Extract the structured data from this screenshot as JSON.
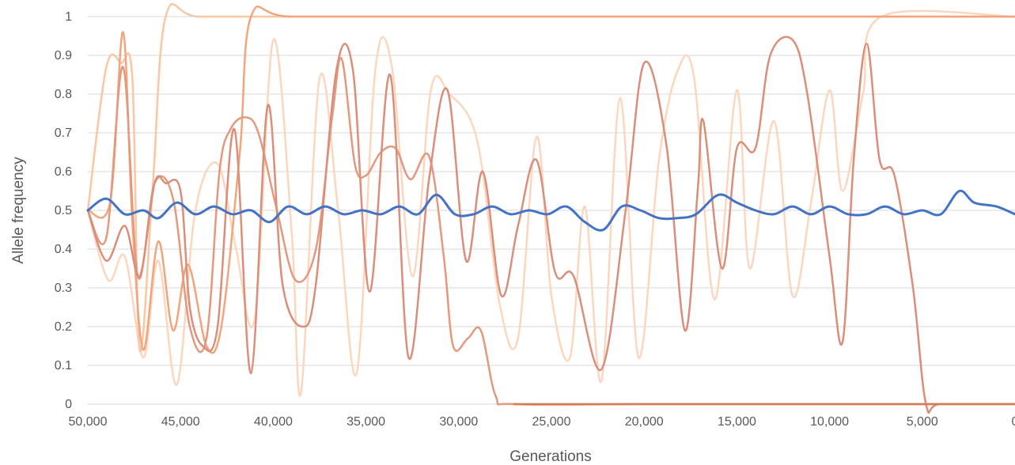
{
  "chart_data": {
    "type": "line",
    "title": "",
    "xlabel": "Generations",
    "ylabel": "Allele frequency",
    "xlim": [
      50000,
      0
    ],
    "x_reversed": true,
    "ylim": [
      0,
      1
    ],
    "grid": true,
    "legend": "none",
    "x_ticks": [
      50000,
      45000,
      40000,
      35000,
      30000,
      25000,
      20000,
      15000,
      10000,
      5000,
      0
    ],
    "x_tick_labels": [
      "50,000",
      "45,000",
      "40,000",
      "35,000",
      "30,000",
      "25,000",
      "20,000",
      "15,000",
      "10,000",
      "5,000",
      "0"
    ],
    "y_ticks": [
      0,
      0.1,
      0.2,
      0.3,
      0.4,
      0.5,
      0.6,
      0.7,
      0.8,
      0.9,
      1
    ],
    "y_tick_labels": [
      "0",
      "0.1",
      "0.2",
      "0.3",
      "0.4",
      "0.5",
      "0.6",
      "0.7",
      "0.8",
      "0.9",
      "1"
    ],
    "series": [
      {
        "color": "#fbd7c0",
        "width": 2.5,
        "points": [
          [
            50000,
            0.5
          ],
          [
            48900,
            0.32
          ],
          [
            48000,
            0.38
          ],
          [
            47000,
            0.12
          ],
          [
            46200,
            0.37
          ],
          [
            45200,
            0.05
          ],
          [
            44200,
            0.5
          ],
          [
            43000,
            0.62
          ],
          [
            42000,
            0.4
          ],
          [
            41000,
            0.22
          ],
          [
            40000,
            0.94
          ],
          [
            39000,
            0.44
          ],
          [
            38500,
            0.03
          ],
          [
            37500,
            0.84
          ],
          [
            36500,
            0.5
          ],
          [
            35500,
            0.08
          ],
          [
            34500,
            0.86
          ],
          [
            33600,
            0.87
          ],
          [
            32500,
            0.33
          ],
          [
            31500,
            0.81
          ],
          [
            30500,
            0.8
          ],
          [
            29000,
            0.68
          ],
          [
            27800,
            0.26
          ],
          [
            26800,
            0.17
          ],
          [
            25800,
            0.69
          ],
          [
            25000,
            0.28
          ],
          [
            24000,
            0.12
          ],
          [
            23200,
            0.51
          ],
          [
            22300,
            0.06
          ],
          [
            21300,
            0.79
          ],
          [
            20300,
            0.12
          ],
          [
            19200,
            0.63
          ],
          [
            18200,
            0.86
          ],
          [
            17300,
            0.84
          ],
          [
            16200,
            0.27
          ],
          [
            15000,
            0.81
          ],
          [
            14300,
            0.35
          ],
          [
            13000,
            0.73
          ],
          [
            12000,
            0.28
          ],
          [
            11000,
            0.52
          ],
          [
            10000,
            0.81
          ],
          [
            9300,
            0.55
          ],
          [
            8200,
            0.8
          ],
          [
            7200,
            1.0
          ],
          [
            0,
            1.0
          ]
        ]
      },
      {
        "color": "#f9c7a4",
        "width": 2.5,
        "points": [
          [
            50000,
            0.5
          ],
          [
            49000,
            0.87
          ],
          [
            48200,
            0.88
          ],
          [
            47600,
            0.84
          ],
          [
            47200,
            0.14
          ],
          [
            46500,
            0.56
          ],
          [
            45800,
            1.0
          ],
          [
            44000,
            1.0
          ],
          [
            38000,
            1.0
          ],
          [
            25000,
            1.0
          ],
          [
            0,
            1.0
          ]
        ]
      },
      {
        "color": "#f2a57d",
        "width": 2.5,
        "points": [
          [
            50000,
            0.5
          ],
          [
            48800,
            0.52
          ],
          [
            48100,
            0.96
          ],
          [
            47600,
            0.47
          ],
          [
            47000,
            0.14
          ],
          [
            46200,
            0.42
          ],
          [
            45400,
            0.19
          ],
          [
            44600,
            0.36
          ],
          [
            43600,
            0.15
          ],
          [
            42800,
            0.2
          ],
          [
            41800,
            0.65
          ],
          [
            41200,
            1.0
          ],
          [
            39000,
            1.0
          ],
          [
            30000,
            1.0
          ],
          [
            15000,
            1.0
          ],
          [
            0,
            1.0
          ]
        ]
      },
      {
        "color": "#e4997e",
        "width": 2.5,
        "points": [
          [
            50000,
            0.5
          ],
          [
            49000,
            0.43
          ],
          [
            48100,
            0.87
          ],
          [
            47300,
            0.33
          ],
          [
            46400,
            0.57
          ],
          [
            45400,
            0.53
          ],
          [
            44500,
            0.2
          ],
          [
            43600,
            0.17
          ],
          [
            42900,
            0.6
          ],
          [
            42300,
            0.71
          ],
          [
            41500,
            0.74
          ],
          [
            40800,
            0.7
          ],
          [
            39800,
            0.5
          ],
          [
            38800,
            0.32
          ],
          [
            37700,
            0.4
          ],
          [
            36800,
            0.75
          ],
          [
            36300,
            0.89
          ],
          [
            35600,
            0.62
          ],
          [
            35000,
            0.59
          ],
          [
            34200,
            0.65
          ],
          [
            33400,
            0.66
          ],
          [
            32600,
            0.58
          ],
          [
            31600,
            0.64
          ],
          [
            30800,
            0.38
          ],
          [
            30300,
            0.15
          ],
          [
            29500,
            0.17
          ],
          [
            28800,
            0.19
          ],
          [
            28000,
            0.02
          ],
          [
            27000,
            0.0
          ],
          [
            20000,
            0.0
          ],
          [
            10000,
            0.0
          ],
          [
            0,
            0.0
          ]
        ]
      },
      {
        "color": "#d98f7a",
        "width": 2.5,
        "points": [
          [
            50000,
            0.5
          ],
          [
            49000,
            0.37
          ],
          [
            48000,
            0.46
          ],
          [
            47200,
            0.33
          ],
          [
            46400,
            0.57
          ],
          [
            45800,
            0.57
          ],
          [
            45000,
            0.55
          ],
          [
            44500,
            0.25
          ],
          [
            43800,
            0.15
          ],
          [
            43000,
            0.2
          ],
          [
            42100,
            0.71
          ],
          [
            41200,
            0.08
          ],
          [
            40300,
            0.77
          ],
          [
            39500,
            0.31
          ],
          [
            38400,
            0.2
          ],
          [
            37700,
            0.31
          ],
          [
            36600,
            0.86
          ],
          [
            35700,
            0.86
          ],
          [
            34800,
            0.29
          ],
          [
            33700,
            0.85
          ],
          [
            32700,
            0.12
          ],
          [
            31600,
            0.58
          ],
          [
            30600,
            0.81
          ],
          [
            29600,
            0.37
          ],
          [
            28700,
            0.6
          ],
          [
            27700,
            0.28
          ],
          [
            26800,
            0.46
          ],
          [
            25800,
            0.63
          ],
          [
            24800,
            0.34
          ],
          [
            23800,
            0.33
          ],
          [
            22300,
            0.09
          ],
          [
            21000,
            0.5
          ],
          [
            20000,
            0.88
          ],
          [
            18800,
            0.67
          ],
          [
            17800,
            0.19
          ],
          [
            17100,
            0.56
          ],
          [
            16800,
            0.73
          ],
          [
            15800,
            0.35
          ],
          [
            15000,
            0.66
          ],
          [
            14000,
            0.66
          ],
          [
            13200,
            0.9
          ],
          [
            12000,
            0.94
          ],
          [
            11200,
            0.8
          ],
          [
            10000,
            0.38
          ],
          [
            9300,
            0.16
          ],
          [
            8700,
            0.63
          ],
          [
            8000,
            0.93
          ],
          [
            7300,
            0.63
          ],
          [
            6500,
            0.59
          ],
          [
            5500,
            0.3
          ],
          [
            4800,
            0.0
          ],
          [
            4000,
            0.0
          ],
          [
            0,
            0.0
          ]
        ]
      },
      {
        "color": "#d67a52",
        "width": 2.5,
        "points": [
          [
            27000,
            0.0
          ],
          [
            20000,
            0.0
          ],
          [
            10000,
            0.0
          ],
          [
            5000,
            0.0
          ],
          [
            0,
            0.0
          ]
        ]
      },
      {
        "color": "#4472c4",
        "width": 3,
        "points": [
          [
            50000,
            0.5
          ],
          [
            49000,
            0.53
          ],
          [
            48000,
            0.49
          ],
          [
            47000,
            0.5
          ],
          [
            46200,
            0.48
          ],
          [
            45200,
            0.52
          ],
          [
            44200,
            0.49
          ],
          [
            43200,
            0.51
          ],
          [
            42200,
            0.49
          ],
          [
            41200,
            0.5
          ],
          [
            40200,
            0.47
          ],
          [
            39200,
            0.51
          ],
          [
            38200,
            0.49
          ],
          [
            37200,
            0.51
          ],
          [
            36200,
            0.49
          ],
          [
            35200,
            0.5
          ],
          [
            34200,
            0.49
          ],
          [
            33200,
            0.51
          ],
          [
            32200,
            0.49
          ],
          [
            31200,
            0.54
          ],
          [
            30200,
            0.49
          ],
          [
            29200,
            0.49
          ],
          [
            28200,
            0.51
          ],
          [
            27200,
            0.49
          ],
          [
            26200,
            0.5
          ],
          [
            25200,
            0.49
          ],
          [
            24200,
            0.51
          ],
          [
            23200,
            0.47
          ],
          [
            22200,
            0.45
          ],
          [
            21200,
            0.51
          ],
          [
            20200,
            0.5
          ],
          [
            19200,
            0.48
          ],
          [
            18200,
            0.48
          ],
          [
            17200,
            0.49
          ],
          [
            16000,
            0.54
          ],
          [
            15000,
            0.52
          ],
          [
            14000,
            0.5
          ],
          [
            13000,
            0.49
          ],
          [
            12000,
            0.51
          ],
          [
            11000,
            0.49
          ],
          [
            10000,
            0.51
          ],
          [
            9000,
            0.49
          ],
          [
            8000,
            0.49
          ],
          [
            7000,
            0.51
          ],
          [
            6000,
            0.49
          ],
          [
            5000,
            0.5
          ],
          [
            4000,
            0.49
          ],
          [
            3000,
            0.55
          ],
          [
            2200,
            0.52
          ],
          [
            1000,
            0.51
          ],
          [
            0,
            0.49
          ]
        ]
      }
    ]
  }
}
